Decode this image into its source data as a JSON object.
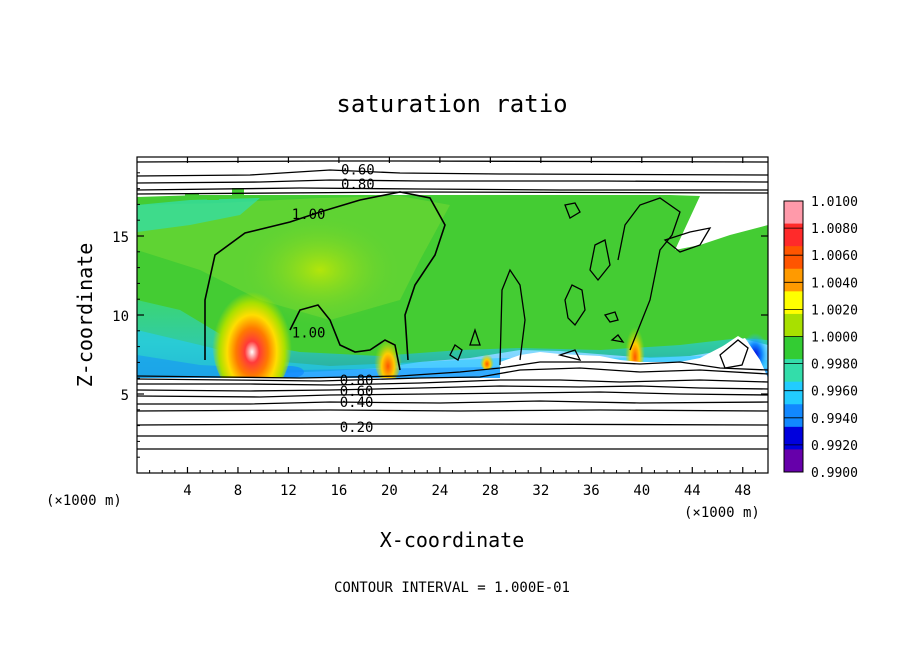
{
  "chart_data": {
    "type": "heatmap",
    "title": "saturation ratio",
    "xlabel": "X-coordinate",
    "ylabel": "Z-coordinate",
    "x_unit": "(×1000 m)",
    "y_unit": "(×1000 m)",
    "xlim": [
      0,
      50
    ],
    "ylim": [
      0,
      20
    ],
    "x_ticks": [
      4,
      8,
      12,
      16,
      20,
      24,
      28,
      32,
      36,
      40,
      44,
      48
    ],
    "y_ticks": [
      5,
      10,
      15
    ],
    "colorbar": {
      "values": [
        "1.0100",
        "1.0080",
        "1.0060",
        "1.0040",
        "1.0020",
        "1.0000",
        "0.9980",
        "0.9960",
        "0.9940",
        "0.9920",
        "0.9900"
      ],
      "colors": [
        "#ff9aaa",
        "#ff2a2a",
        "#ff5500",
        "#ff9a00",
        "#ffff00",
        "#a8e000",
        "#33cc33",
        "#33ddaa",
        "#22ccff",
        "#1188ff",
        "#0000dd",
        "#6600aa"
      ]
    },
    "contour_labels": [
      {
        "label": "0.60",
        "x": 17.5,
        "z": 19.2
      },
      {
        "label": "0.80",
        "x": 17.5,
        "z": 18.3
      },
      {
        "label": "1.00",
        "x": 13.6,
        "z": 16.4
      },
      {
        "label": "1.00",
        "x": 13.6,
        "z": 8.9
      },
      {
        "label": "0.80",
        "x": 17.4,
        "z": 5.9
      },
      {
        "label": "0.60",
        "x": 17.4,
        "z": 5.2
      },
      {
        "label": "0.40",
        "x": 17.4,
        "z": 4.5
      },
      {
        "label": "0.20",
        "x": 17.4,
        "z": 2.9
      }
    ],
    "contour_levels_z": [
      1.2,
      1.8,
      2.3,
      3.1,
      3.7,
      4.2,
      4.8,
      5.2,
      5.7,
      18.0,
      18.5,
      19.4
    ],
    "plume_maxima": [
      {
        "x": 9.5,
        "z": 8.0,
        "value": 1.01
      },
      {
        "x": 19.5,
        "z": 7.5,
        "value": 1.008
      },
      {
        "x": 40.0,
        "z": 7.8,
        "value": 1.008
      },
      {
        "x": 28.0,
        "z": 7.0,
        "value": 1.006
      }
    ],
    "footer": "CONTOUR INTERVAL = 1.000E-01"
  }
}
